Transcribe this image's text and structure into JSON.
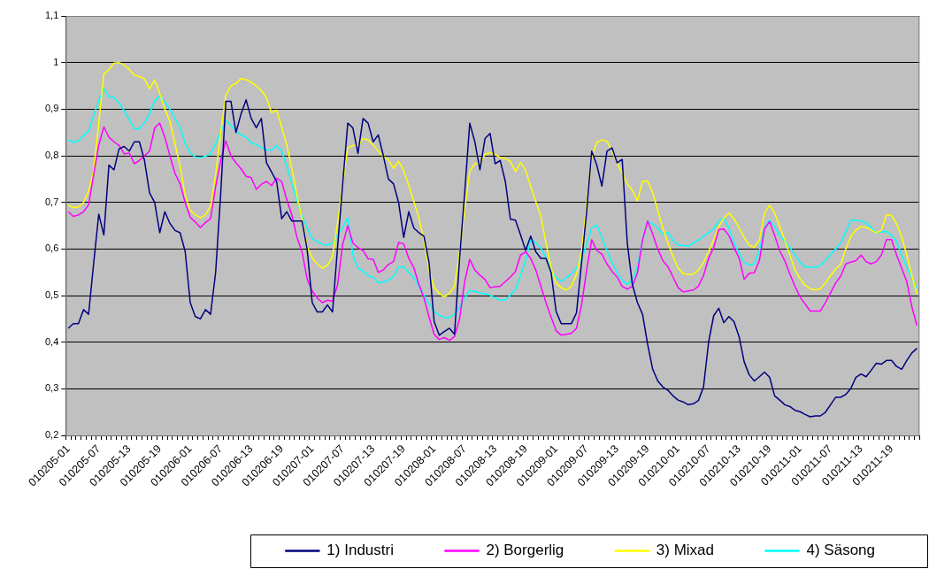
{
  "chart_data": {
    "type": "line",
    "categories": [
      "010205-01",
      null,
      null,
      null,
      null,
      null,
      "010205-07",
      null,
      null,
      null,
      null,
      null,
      "010205-13",
      null,
      null,
      null,
      null,
      null,
      "010205-19",
      null,
      null,
      null,
      null,
      null,
      "010206-01",
      null,
      null,
      null,
      null,
      null,
      "010206-07",
      null,
      null,
      null,
      null,
      null,
      "010206-13",
      null,
      null,
      null,
      null,
      null,
      "010206-19",
      null,
      null,
      null,
      null,
      null,
      "010207-01",
      null,
      null,
      null,
      null,
      null,
      "010207-07",
      null,
      null,
      null,
      null,
      null,
      "010207-13",
      null,
      null,
      null,
      null,
      null,
      "010207-19",
      null,
      null,
      null,
      null,
      null,
      "010208-01",
      null,
      null,
      null,
      null,
      null,
      "010208-07",
      null,
      null,
      null,
      null,
      null,
      "010208-13",
      null,
      null,
      null,
      null,
      null,
      "010208-19",
      null,
      null,
      null,
      null,
      null,
      "010209-01",
      null,
      null,
      null,
      null,
      null,
      "010209-07",
      null,
      null,
      null,
      null,
      null,
      "010209-13",
      null,
      null,
      null,
      null,
      null,
      "010209-19",
      null,
      null,
      null,
      null,
      null,
      "010210-01",
      null,
      null,
      null,
      null,
      null,
      "010210-07",
      null,
      null,
      null,
      null,
      null,
      "010210-13",
      null,
      null,
      null,
      null,
      null,
      "010210-19",
      null,
      null,
      null,
      null,
      null,
      "010211-01",
      null,
      null,
      null,
      null,
      null,
      "010211-07",
      null,
      null,
      null,
      null,
      null,
      "010211-13",
      null,
      null,
      null,
      null,
      null,
      "010211-19",
      null,
      null,
      null,
      null,
      null
    ],
    "series": [
      {
        "name": "1) Industri",
        "color": "#000080",
        "values": [
          0.43,
          0.44,
          0.44,
          0.47,
          0.46,
          0.57,
          0.675,
          0.63,
          0.78,
          0.77,
          0.815,
          0.82,
          0.81,
          0.83,
          0.83,
          0.79,
          0.72,
          0.7,
          0.635,
          0.68,
          0.655,
          0.64,
          0.635,
          0.595,
          0.485,
          0.455,
          0.45,
          0.47,
          0.46,
          0.55,
          0.72,
          0.917,
          0.917,
          0.85,
          0.89,
          0.92,
          0.88,
          0.86,
          0.88,
          0.785,
          0.765,
          0.745,
          0.665,
          0.68,
          0.66,
          0.66,
          0.66,
          0.6,
          0.485,
          0.465,
          0.465,
          0.48,
          0.465,
          0.605,
          0.74,
          0.87,
          0.86,
          0.805,
          0.88,
          0.87,
          0.83,
          0.845,
          0.8,
          0.75,
          0.74,
          0.7,
          0.625,
          0.68,
          0.645,
          0.635,
          0.627,
          0.57,
          0.444,
          0.415,
          0.423,
          0.43,
          0.417,
          0.58,
          0.72,
          0.87,
          0.83,
          0.77,
          0.837,
          0.848,
          0.783,
          0.79,
          0.745,
          0.664,
          0.662,
          0.63,
          0.597,
          0.628,
          0.594,
          0.58,
          0.58,
          0.55,
          0.466,
          0.44,
          0.44,
          0.44,
          0.463,
          0.57,
          0.68,
          0.81,
          0.78,
          0.735,
          0.81,
          0.817,
          0.785,
          0.792,
          0.613,
          0.524,
          0.485,
          0.46,
          0.396,
          0.342,
          0.317,
          0.304,
          0.297,
          0.285,
          0.276,
          0.272,
          0.266,
          0.268,
          0.275,
          0.304,
          0.4,
          0.457,
          0.473,
          0.442,
          0.455,
          0.444,
          0.412,
          0.358,
          0.33,
          0.317,
          0.326,
          0.336,
          0.325,
          0.285,
          0.276,
          0.266,
          0.262,
          0.254,
          0.251,
          0.245,
          0.24,
          0.242,
          0.242,
          0.25,
          0.266,
          0.282,
          0.282,
          0.288,
          0.301,
          0.325,
          0.332,
          0.326,
          0.34,
          0.355,
          0.353,
          0.361,
          0.361,
          0.348,
          0.342,
          0.361,
          0.377,
          0.387
        ]
      },
      {
        "name": "2) Borgerlig",
        "color": "#ff00ff",
        "values": [
          0.68,
          0.67,
          0.673,
          0.68,
          0.695,
          0.76,
          0.823,
          0.862,
          0.84,
          0.83,
          0.822,
          0.804,
          0.806,
          0.783,
          0.79,
          0.8,
          0.81,
          0.86,
          0.87,
          0.84,
          0.8,
          0.762,
          0.74,
          0.7,
          0.668,
          0.658,
          0.646,
          0.657,
          0.665,
          0.734,
          0.79,
          0.832,
          0.8,
          0.785,
          0.772,
          0.756,
          0.753,
          0.728,
          0.739,
          0.745,
          0.736,
          0.752,
          0.745,
          0.705,
          0.673,
          0.625,
          0.594,
          0.536,
          0.51,
          0.495,
          0.485,
          0.49,
          0.488,
          0.524,
          0.61,
          0.65,
          0.613,
          0.603,
          0.597,
          0.579,
          0.578,
          0.55,
          0.555,
          0.567,
          0.573,
          0.614,
          0.611,
          0.58,
          0.56,
          0.524,
          0.495,
          0.454,
          0.417,
          0.406,
          0.41,
          0.404,
          0.412,
          0.45,
          0.53,
          0.578,
          0.555,
          0.544,
          0.535,
          0.517,
          0.519,
          0.52,
          0.53,
          0.54,
          0.552,
          0.587,
          0.594,
          0.58,
          0.555,
          0.52,
          0.485,
          0.454,
          0.425,
          0.415,
          0.417,
          0.419,
          0.43,
          0.48,
          0.555,
          0.62,
          0.597,
          0.589,
          0.568,
          0.552,
          0.54,
          0.52,
          0.514,
          0.52,
          0.549,
          0.619,
          0.66,
          0.632,
          0.6,
          0.575,
          0.562,
          0.54,
          0.517,
          0.508,
          0.51,
          0.512,
          0.52,
          0.543,
          0.58,
          0.603,
          0.642,
          0.643,
          0.629,
          0.603,
          0.581,
          0.535,
          0.548,
          0.549,
          0.576,
          0.643,
          0.659,
          0.629,
          0.596,
          0.575,
          0.546,
          0.52,
          0.497,
          0.482,
          0.467,
          0.467,
          0.467,
          0.485,
          0.506,
          0.527,
          0.542,
          0.568,
          0.572,
          0.575,
          0.587,
          0.573,
          0.568,
          0.573,
          0.587,
          0.62,
          0.62,
          0.587,
          0.559,
          0.53,
          0.476,
          0.436
        ]
      },
      {
        "name": "3) Mixad",
        "color": "#ffff00",
        "values": [
          0.694,
          0.689,
          0.69,
          0.7,
          0.724,
          0.77,
          0.87,
          0.975,
          0.985,
          0.999,
          1.0,
          0.995,
          0.985,
          0.973,
          0.97,
          0.965,
          0.943,
          0.963,
          0.934,
          0.9,
          0.874,
          0.826,
          0.778,
          0.715,
          0.683,
          0.673,
          0.667,
          0.673,
          0.692,
          0.76,
          0.85,
          0.93,
          0.95,
          0.955,
          0.966,
          0.963,
          0.958,
          0.95,
          0.94,
          0.925,
          0.892,
          0.898,
          0.861,
          0.823,
          0.772,
          0.715,
          0.664,
          0.606,
          0.581,
          0.568,
          0.559,
          0.565,
          0.584,
          0.657,
          0.74,
          0.817,
          0.822,
          0.822,
          0.837,
          0.834,
          0.823,
          0.81,
          0.799,
          0.791,
          0.773,
          0.788,
          0.769,
          0.737,
          0.702,
          0.667,
          0.616,
          0.555,
          0.517,
          0.505,
          0.497,
          0.505,
          0.52,
          0.594,
          0.683,
          0.767,
          0.783,
          0.783,
          0.803,
          0.807,
          0.803,
          0.796,
          0.794,
          0.788,
          0.766,
          0.786,
          0.769,
          0.734,
          0.702,
          0.67,
          0.613,
          0.56,
          0.527,
          0.517,
          0.512,
          0.52,
          0.546,
          0.594,
          0.696,
          0.797,
          0.829,
          0.834,
          0.831,
          0.81,
          0.785,
          0.762,
          0.74,
          0.726,
          0.703,
          0.745,
          0.746,
          0.721,
          0.683,
          0.645,
          0.613,
          0.584,
          0.559,
          0.547,
          0.545,
          0.546,
          0.555,
          0.571,
          0.595,
          0.619,
          0.648,
          0.667,
          0.677,
          0.665,
          0.645,
          0.625,
          0.608,
          0.604,
          0.619,
          0.677,
          0.694,
          0.677,
          0.648,
          0.619,
          0.587,
          0.555,
          0.536,
          0.522,
          0.515,
          0.512,
          0.515,
          0.527,
          0.543,
          0.557,
          0.567,
          0.6,
          0.627,
          0.641,
          0.648,
          0.646,
          0.641,
          0.635,
          0.64,
          0.674,
          0.672,
          0.654,
          0.626,
          0.587,
          0.543,
          0.504
        ]
      },
      {
        "name": "4) Säsong",
        "color": "#00ffff",
        "values": [
          0.834,
          0.829,
          0.832,
          0.843,
          0.853,
          0.887,
          0.918,
          0.944,
          0.927,
          0.925,
          0.913,
          0.897,
          0.877,
          0.858,
          0.858,
          0.871,
          0.89,
          0.918,
          0.928,
          0.915,
          0.9,
          0.879,
          0.861,
          0.826,
          0.807,
          0.797,
          0.796,
          0.799,
          0.805,
          0.826,
          0.852,
          0.875,
          0.866,
          0.853,
          0.845,
          0.839,
          0.828,
          0.824,
          0.818,
          0.813,
          0.812,
          0.822,
          0.81,
          0.778,
          0.74,
          0.705,
          0.67,
          0.645,
          0.622,
          0.616,
          0.61,
          0.608,
          0.613,
          0.631,
          0.646,
          0.667,
          0.587,
          0.559,
          0.552,
          0.543,
          0.539,
          0.527,
          0.529,
          0.533,
          0.541,
          0.562,
          0.562,
          0.549,
          0.539,
          0.52,
          0.501,
          0.482,
          0.466,
          0.458,
          0.453,
          0.453,
          0.46,
          0.474,
          0.495,
          0.511,
          0.509,
          0.506,
          0.504,
          0.501,
          0.495,
          0.49,
          0.491,
          0.501,
          0.514,
          0.543,
          0.575,
          0.622,
          0.613,
          0.602,
          0.581,
          0.555,
          0.539,
          0.53,
          0.539,
          0.547,
          0.559,
          0.578,
          0.61,
          0.646,
          0.651,
          0.625,
          0.597,
          0.571,
          0.549,
          0.533,
          0.524,
          0.533,
          0.562,
          0.619,
          0.659,
          0.654,
          0.645,
          0.632,
          0.635,
          0.619,
          0.608,
          0.608,
          0.606,
          0.613,
          0.619,
          0.627,
          0.635,
          0.643,
          0.66,
          0.667,
          0.645,
          0.613,
          0.591,
          0.571,
          0.565,
          0.568,
          0.597,
          0.645,
          0.662,
          0.648,
          0.629,
          0.616,
          0.604,
          0.587,
          0.571,
          0.562,
          0.561,
          0.561,
          0.565,
          0.575,
          0.589,
          0.6,
          0.613,
          0.637,
          0.662,
          0.662,
          0.66,
          0.656,
          0.646,
          0.635,
          0.637,
          0.638,
          0.629,
          0.616,
          0.587,
          0.562,
          0.539,
          0.514
        ]
      }
    ],
    "ylim": [
      0.2,
      1.1
    ],
    "yticks": [
      {
        "value": 0.2,
        "label": "0,2"
      },
      {
        "value": 0.3,
        "label": "0,3"
      },
      {
        "value": 0.4,
        "label": "0,4"
      },
      {
        "value": 0.5,
        "label": "0,5"
      },
      {
        "value": 0.6,
        "label": "0,6"
      },
      {
        "value": 0.7,
        "label": "0,7"
      },
      {
        "value": 0.8,
        "label": "0,8"
      },
      {
        "value": 0.9,
        "label": "0,9"
      },
      1,
      {
        "value": 1.1,
        "label": "1,1"
      }
    ],
    "grid": "y",
    "legend": "bottom",
    "marker": "none",
    "line_style": "solid"
  }
}
